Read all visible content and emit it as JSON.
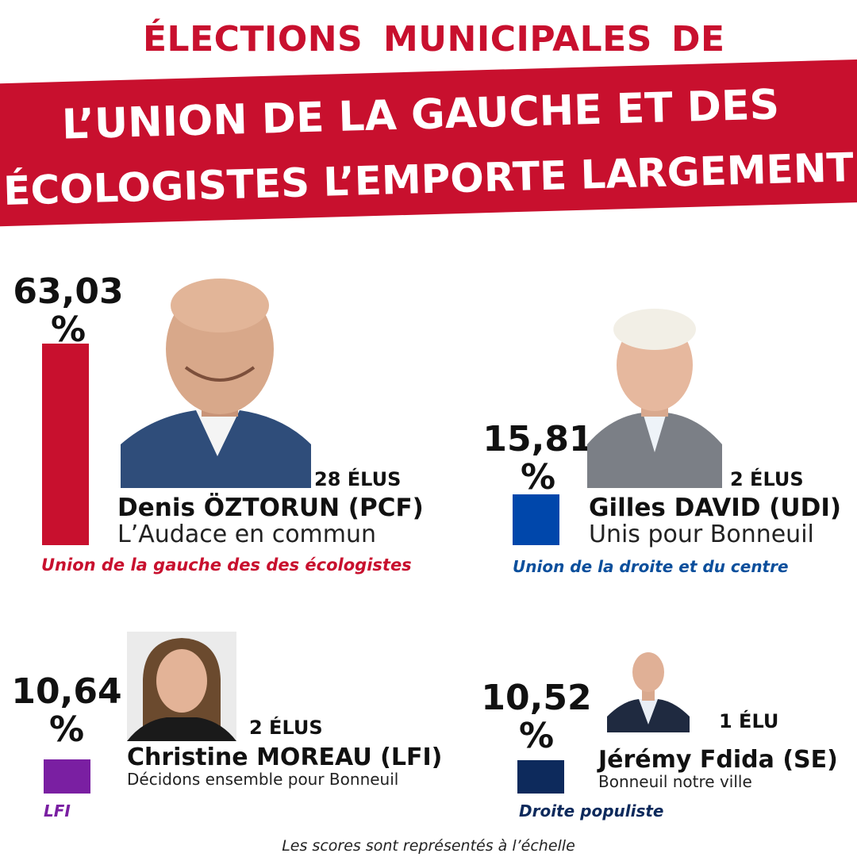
{
  "header": {
    "words": [
      "ÉLECTIONS",
      "MUNICIPALES",
      "DE"
    ],
    "banner_line1": "L’UNION DE LA GAUCHE ET DES",
    "banner_line2": "ÉCOLOGISTES L’EMPORTE LARGEMENT"
  },
  "colors": {
    "brand_red": "#c8102e",
    "udi_blue": "#0047ab",
    "lfi_purple": "#7a1fa2",
    "se_navy": "#0d2a5c"
  },
  "chart_data": {
    "type": "bar",
    "categories": [
      "Denis ÖZTORUN (PCF)",
      "Gilles DAVID (UDI)",
      "Christine MOREAU (LFI)",
      "Jérémy Fdida (SE)"
    ],
    "values": [
      63.03,
      15.81,
      10.64,
      10.52
    ],
    "value_labels": [
      [
        "63,03",
        "%"
      ],
      [
        "15,81",
        "%"
      ],
      [
        "10,64",
        "%"
      ],
      [
        "10,52",
        "%"
      ]
    ],
    "seats": [
      "28 ÉLUS",
      "2 ÉLUS",
      "2 ÉLUS",
      "1 ÉLU"
    ],
    "lists": [
      "L’Audace en commun",
      "Unis pour Bonneuil",
      "Décidons ensemble pour Bonneuil",
      "Bonneuil notre ville"
    ],
    "coalitions": [
      "Union de la gauche des des écologistes",
      "Union de la droite et du centre",
      "LFI",
      "Droite populiste"
    ],
    "colors": [
      "#c8102e",
      "#0047ab",
      "#7a1fa2",
      "#0d2a5c"
    ]
  },
  "footnote": "Les scores sont représentés à l’échelle"
}
